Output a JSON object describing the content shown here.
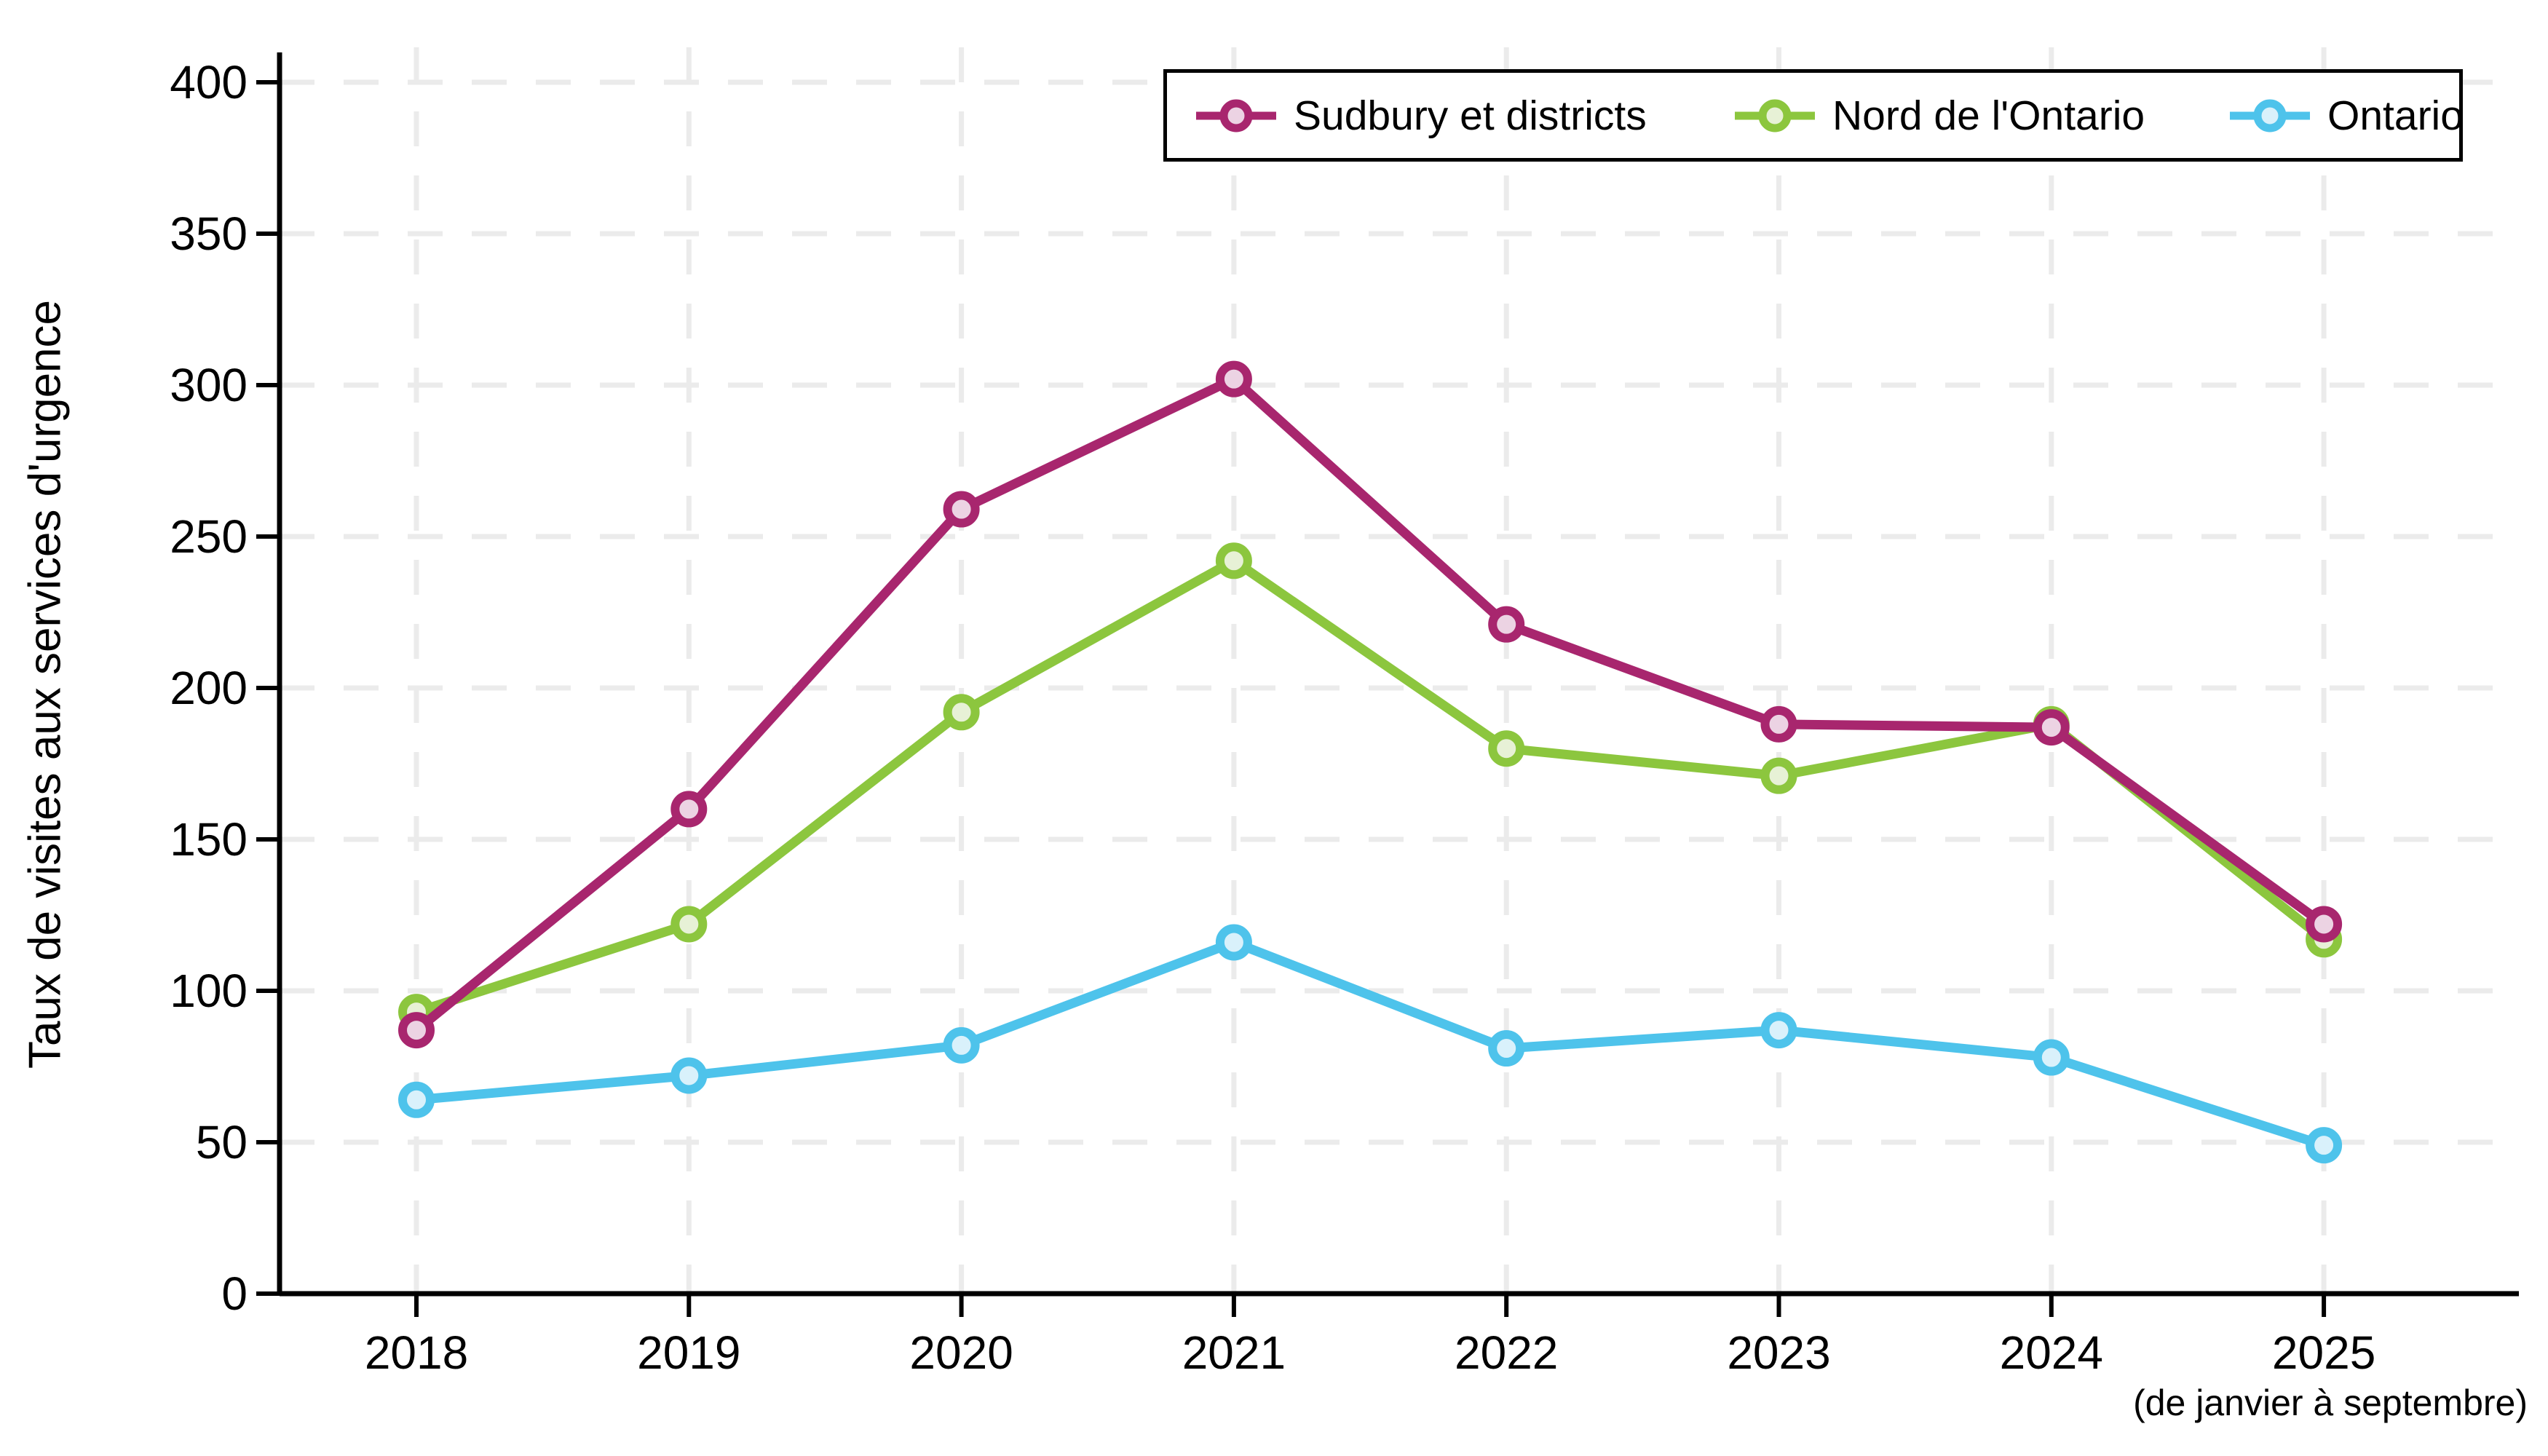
{
  "chart_data": {
    "type": "line",
    "title": "",
    "xlabel": "",
    "ylabel": "Taux de visites aux services d'urgence",
    "x_note": "(de janvier à septembre)",
    "categories": [
      "2018",
      "2019",
      "2020",
      "2021",
      "2022",
      "2023",
      "2024",
      "2025"
    ],
    "series": [
      {
        "name": "Sudbury et districts",
        "color": "#a8266e",
        "marker_fill": "#ecd3e3",
        "values": [
          87,
          160,
          259,
          302,
          221,
          188,
          187,
          122
        ]
      },
      {
        "name": "Nord de l'Ontario",
        "color": "#8cc63e",
        "marker_fill": "#e7f1d6",
        "values": [
          93,
          122,
          192,
          242,
          180,
          171,
          188,
          117
        ]
      },
      {
        "name": "Ontario",
        "color": "#4ec3eb",
        "marker_fill": "#d9f1fb",
        "values": [
          64,
          72,
          82,
          116,
          81,
          87,
          78,
          49
        ]
      }
    ],
    "ylim": [
      0,
      400
    ],
    "ytick_step": 50,
    "grid": true,
    "legend_position": "top-right"
  },
  "style": {
    "grid_color": "#ebebeb",
    "axis_color": "#000000",
    "background": "#ffffff"
  }
}
